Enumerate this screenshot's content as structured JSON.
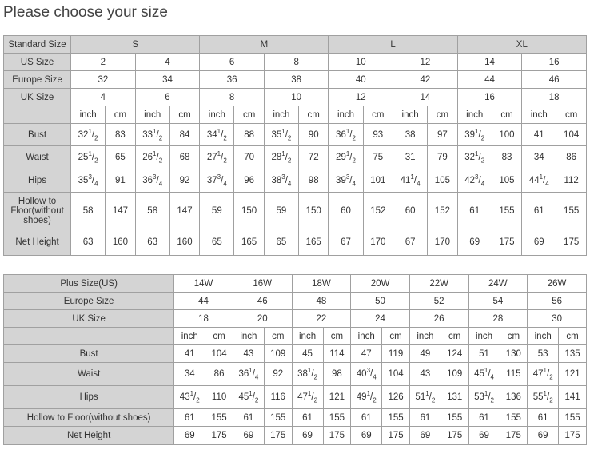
{
  "title": "Please choose your size",
  "table1": {
    "header": {
      "label": "Standard Size",
      "groups": [
        "S",
        "M",
        "L",
        "XL"
      ]
    },
    "size_rows": [
      {
        "label": "US Size",
        "values": [
          "2",
          "4",
          "6",
          "8",
          "10",
          "12",
          "14",
          "16"
        ]
      },
      {
        "label": "Europe Size",
        "values": [
          "32",
          "34",
          "36",
          "38",
          "40",
          "42",
          "44",
          "46"
        ]
      },
      {
        "label": "UK Size",
        "values": [
          "4",
          "6",
          "8",
          "10",
          "12",
          "14",
          "16",
          "18"
        ]
      }
    ],
    "units": [
      "inch",
      "cm"
    ],
    "measure_rows": [
      {
        "label": "Bust",
        "values": [
          "32 1/2",
          "83",
          "33 1/2",
          "84",
          "34 1/2",
          "88",
          "35 1/2",
          "90",
          "36 1/2",
          "93",
          "38",
          "97",
          "39 1/2",
          "100",
          "41",
          "104"
        ]
      },
      {
        "label": "Waist",
        "values": [
          "25 1/2",
          "65",
          "26 1/2",
          "68",
          "27 1/2",
          "70",
          "28 1/2",
          "72",
          "29 1/2",
          "75",
          "31",
          "79",
          "32 1/2",
          "83",
          "34",
          "86"
        ]
      },
      {
        "label": "Hips",
        "values": [
          "35 3/4",
          "91",
          "36 3/4",
          "92",
          "37 3/4",
          "96",
          "38 3/4",
          "98",
          "39 3/4",
          "101",
          "41 1/4",
          "105",
          "42 3/4",
          "105",
          "44 1/4",
          "112"
        ]
      },
      {
        "label": "Hollow to Floor(without shoes)",
        "values": [
          "58",
          "147",
          "58",
          "147",
          "59",
          "150",
          "59",
          "150",
          "60",
          "152",
          "60",
          "152",
          "61",
          "155",
          "61",
          "155"
        ]
      },
      {
        "label": "Net Height",
        "values": [
          "63",
          "160",
          "63",
          "160",
          "65",
          "165",
          "65",
          "165",
          "67",
          "170",
          "67",
          "170",
          "69",
          "175",
          "69",
          "175"
        ]
      }
    ]
  },
  "table2": {
    "size_rows": [
      {
        "label": "Plus Size(US)",
        "values": [
          "14W",
          "16W",
          "18W",
          "20W",
          "22W",
          "24W",
          "26W"
        ]
      },
      {
        "label": "Europe Size",
        "values": [
          "44",
          "46",
          "48",
          "50",
          "52",
          "54",
          "56"
        ]
      },
      {
        "label": "UK Size",
        "values": [
          "18",
          "20",
          "22",
          "24",
          "26",
          "28",
          "30"
        ]
      }
    ],
    "units": [
      "inch",
      "cm"
    ],
    "measure_rows": [
      {
        "label": "Bust",
        "values": [
          "41",
          "104",
          "43",
          "109",
          "45",
          "114",
          "47",
          "119",
          "49",
          "124",
          "51",
          "130",
          "53",
          "135"
        ]
      },
      {
        "label": "Waist",
        "values": [
          "34",
          "86",
          "36 1/4",
          "92",
          "38 1/2",
          "98",
          "40 3/4",
          "104",
          "43",
          "109",
          "45 1/4",
          "115",
          "47 1/2",
          "121"
        ]
      },
      {
        "label": "Hips",
        "values": [
          "43 1/2",
          "110",
          "45 1/2",
          "116",
          "47 1/2",
          "121",
          "49 1/2",
          "126",
          "51 1/2",
          "131",
          "53 1/2",
          "136",
          "55 1/2",
          "141"
        ]
      },
      {
        "label": "Hollow to Floor(without shoes)",
        "values": [
          "61",
          "155",
          "61",
          "155",
          "61",
          "155",
          "61",
          "155",
          "61",
          "155",
          "61",
          "155",
          "61",
          "155"
        ]
      },
      {
        "label": "Net Height",
        "values": [
          "69",
          "175",
          "69",
          "175",
          "69",
          "175",
          "69",
          "175",
          "69",
          "175",
          "69",
          "175",
          "69",
          "175"
        ]
      }
    ]
  }
}
